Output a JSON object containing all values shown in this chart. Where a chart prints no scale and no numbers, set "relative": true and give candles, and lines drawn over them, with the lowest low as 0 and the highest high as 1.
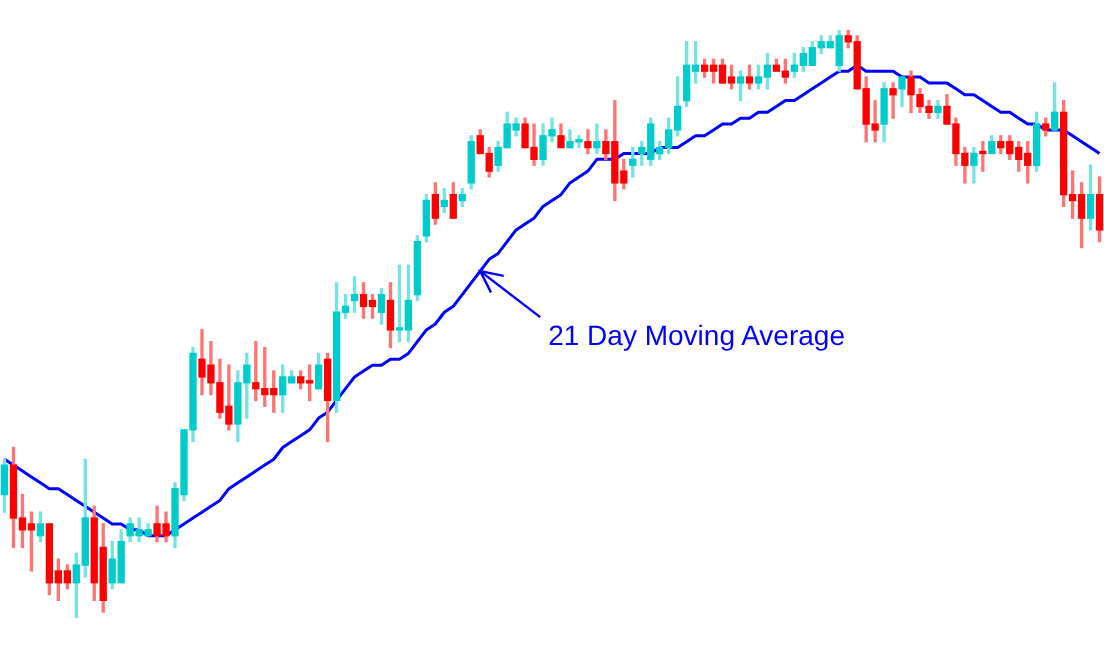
{
  "chart_data": {
    "type": "candlestick",
    "relative": true,
    "legend": false,
    "categories": [
      null,
      null,
      null,
      null,
      null,
      null,
      null,
      null,
      null,
      null,
      null,
      null,
      null,
      null,
      null,
      null,
      null,
      null,
      null,
      null,
      null,
      null,
      null,
      null,
      null,
      null,
      null,
      null,
      null,
      null,
      null,
      null,
      null,
      null,
      null,
      null,
      null,
      null,
      null,
      null,
      null,
      null,
      null,
      null,
      null,
      null,
      null,
      null,
      null,
      null,
      null,
      null,
      null,
      null,
      null,
      null,
      null,
      null,
      null,
      null,
      null,
      null,
      null,
      null,
      null,
      null,
      null,
      null,
      null,
      null,
      null,
      null,
      null,
      null,
      null,
      null,
      null,
      null,
      null,
      null,
      null,
      null,
      null,
      null,
      null,
      null,
      null,
      null,
      null,
      null,
      null,
      null,
      null,
      null,
      null,
      null,
      null,
      null,
      null,
      null,
      null,
      null,
      null,
      null,
      null,
      null,
      null,
      null,
      null,
      null,
      null,
      null,
      null,
      null,
      null,
      null,
      null,
      null,
      null,
      null,
      null,
      null,
      null
    ],
    "ohlc": [
      [
        0.21,
        0.27,
        0.18,
        0.26
      ],
      [
        0.26,
        0.29,
        0.12,
        0.17
      ],
      [
        0.17,
        0.21,
        0.12,
        0.15
      ],
      [
        0.16,
        0.18,
        0.08,
        0.15
      ],
      [
        0.14,
        0.18,
        0.13,
        0.16
      ],
      [
        0.16,
        0.16,
        0.04,
        0.06
      ],
      [
        0.08,
        0.1,
        0.03,
        0.06
      ],
      [
        0.08,
        0.09,
        0.05,
        0.06
      ],
      [
        0.06,
        0.11,
        0.0,
        0.09
      ],
      [
        0.09,
        0.27,
        0.07,
        0.17
      ],
      [
        0.17,
        0.19,
        0.03,
        0.06
      ],
      [
        0.12,
        0.16,
        0.01,
        0.03
      ],
      [
        0.06,
        0.13,
        0.05,
        0.1
      ],
      [
        0.06,
        0.15,
        0.06,
        0.13
      ],
      [
        0.14,
        0.17,
        0.13,
        0.16
      ],
      [
        0.14,
        0.17,
        0.13,
        0.15
      ],
      [
        0.14,
        0.16,
        0.14,
        0.15
      ],
      [
        0.16,
        0.19,
        0.13,
        0.14
      ],
      [
        0.16,
        0.18,
        0.13,
        0.14
      ],
      [
        0.14,
        0.23,
        0.12,
        0.22
      ],
      [
        0.21,
        0.32,
        0.2,
        0.32
      ],
      [
        0.32,
        0.46,
        0.3,
        0.45
      ],
      [
        0.44,
        0.49,
        0.38,
        0.41
      ],
      [
        0.43,
        0.47,
        0.38,
        0.4
      ],
      [
        0.4,
        0.44,
        0.34,
        0.35
      ],
      [
        0.36,
        0.43,
        0.32,
        0.33
      ],
      [
        0.33,
        0.42,
        0.3,
        0.4
      ],
      [
        0.4,
        0.45,
        0.34,
        0.43
      ],
      [
        0.4,
        0.47,
        0.37,
        0.39
      ],
      [
        0.39,
        0.46,
        0.36,
        0.38
      ],
      [
        0.39,
        0.42,
        0.35,
        0.38
      ],
      [
        0.38,
        0.43,
        0.35,
        0.41
      ],
      [
        0.4,
        0.42,
        0.4,
        0.41
      ],
      [
        0.41,
        0.42,
        0.39,
        0.4
      ],
      [
        0.4,
        0.43,
        0.37,
        0.4
      ],
      [
        0.39,
        0.45,
        0.39,
        0.43
      ],
      [
        0.44,
        0.45,
        0.3,
        0.37
      ],
      [
        0.37,
        0.57,
        0.35,
        0.52
      ],
      [
        0.52,
        0.55,
        0.51,
        0.53
      ],
      [
        0.54,
        0.58,
        0.52,
        0.55
      ],
      [
        0.55,
        0.57,
        0.51,
        0.53
      ],
      [
        0.54,
        0.55,
        0.51,
        0.53
      ],
      [
        0.52,
        0.56,
        0.5,
        0.55
      ],
      [
        0.54,
        0.57,
        0.46,
        0.49
      ],
      [
        0.49,
        0.6,
        0.47,
        0.49
      ],
      [
        0.49,
        0.6,
        0.47,
        0.54
      ],
      [
        0.55,
        0.65,
        0.54,
        0.64
      ],
      [
        0.65,
        0.72,
        0.64,
        0.71
      ],
      [
        0.72,
        0.74,
        0.67,
        0.68
      ],
      [
        0.7,
        0.73,
        0.69,
        0.71
      ],
      [
        0.72,
        0.74,
        0.68,
        0.68
      ],
      [
        0.71,
        0.73,
        0.7,
        0.72
      ],
      [
        0.74,
        0.82,
        0.73,
        0.81
      ],
      [
        0.82,
        0.83,
        0.79,
        0.79
      ],
      [
        0.79,
        0.8,
        0.75,
        0.76
      ],
      [
        0.77,
        0.81,
        0.76,
        0.8
      ],
      [
        0.8,
        0.86,
        0.8,
        0.84
      ],
      [
        0.83,
        0.85,
        0.82,
        0.84
      ],
      [
        0.84,
        0.85,
        0.8,
        0.8
      ],
      [
        0.8,
        0.84,
        0.77,
        0.78
      ],
      [
        0.78,
        0.84,
        0.77,
        0.82
      ],
      [
        0.82,
        0.85,
        0.81,
        0.83
      ],
      [
        0.82,
        0.84,
        0.8,
        0.8
      ],
      [
        0.8,
        0.83,
        0.8,
        0.81
      ],
      [
        0.81,
        0.82,
        0.8,
        0.81
      ],
      [
        0.81,
        0.83,
        0.79,
        0.8
      ],
      [
        0.8,
        0.84,
        0.79,
        0.81
      ],
      [
        0.81,
        0.83,
        0.78,
        0.79
      ],
      [
        0.81,
        0.88,
        0.71,
        0.74
      ],
      [
        0.76,
        0.78,
        0.73,
        0.74
      ],
      [
        0.77,
        0.8,
        0.75,
        0.78
      ],
      [
        0.79,
        0.81,
        0.77,
        0.8
      ],
      [
        0.78,
        0.85,
        0.77,
        0.84
      ],
      [
        0.79,
        0.81,
        0.78,
        0.8
      ],
      [
        0.8,
        0.85,
        0.79,
        0.83
      ],
      [
        0.83,
        0.92,
        0.82,
        0.87
      ],
      [
        0.88,
        0.98,
        0.87,
        0.94
      ],
      [
        0.93,
        0.98,
        0.91,
        0.94
      ],
      [
        0.94,
        0.95,
        0.92,
        0.93
      ],
      [
        0.94,
        0.95,
        0.91,
        0.93
      ],
      [
        0.94,
        0.95,
        0.91,
        0.91
      ],
      [
        0.92,
        0.94,
        0.9,
        0.91
      ],
      [
        0.91,
        0.93,
        0.88,
        0.92
      ],
      [
        0.92,
        0.94,
        0.9,
        0.91
      ],
      [
        0.91,
        0.94,
        0.9,
        0.92
      ],
      [
        0.92,
        0.96,
        0.9,
        0.94
      ],
      [
        0.94,
        0.95,
        0.93,
        0.93
      ],
      [
        0.93,
        0.95,
        0.91,
        0.92
      ],
      [
        0.93,
        0.96,
        0.92,
        0.94
      ],
      [
        0.94,
        0.97,
        0.93,
        0.96
      ],
      [
        0.94,
        0.98,
        0.94,
        0.97
      ],
      [
        0.97,
        0.99,
        0.96,
        0.98
      ],
      [
        0.97,
        0.99,
        0.97,
        0.98
      ],
      [
        0.94,
        1.0,
        0.93,
        0.99
      ],
      [
        0.99,
        1.0,
        0.97,
        0.98
      ],
      [
        0.98,
        0.99,
        0.9,
        0.9
      ],
      [
        0.9,
        0.92,
        0.81,
        0.84
      ],
      [
        0.84,
        0.88,
        0.81,
        0.83
      ],
      [
        0.84,
        0.91,
        0.81,
        0.9
      ],
      [
        0.9,
        0.91,
        0.85,
        0.89
      ],
      [
        0.9,
        0.92,
        0.87,
        0.92
      ],
      [
        0.92,
        0.93,
        0.86,
        0.89
      ],
      [
        0.89,
        0.9,
        0.86,
        0.87
      ],
      [
        0.87,
        0.88,
        0.85,
        0.86
      ],
      [
        0.86,
        0.88,
        0.85,
        0.87
      ],
      [
        0.87,
        0.89,
        0.84,
        0.84
      ],
      [
        0.84,
        0.85,
        0.77,
        0.79
      ],
      [
        0.79,
        0.8,
        0.74,
        0.77
      ],
      [
        0.77,
        0.8,
        0.74,
        0.79
      ],
      [
        0.79,
        0.81,
        0.76,
        0.79
      ],
      [
        0.79,
        0.82,
        0.79,
        0.81
      ],
      [
        0.81,
        0.82,
        0.79,
        0.8
      ],
      [
        0.81,
        0.82,
        0.78,
        0.79
      ],
      [
        0.8,
        0.81,
        0.76,
        0.78
      ],
      [
        0.79,
        0.81,
        0.74,
        0.77
      ],
      [
        0.77,
        0.86,
        0.76,
        0.84
      ],
      [
        0.84,
        0.85,
        0.82,
        0.83
      ],
      [
        0.83,
        0.91,
        0.83,
        0.86
      ],
      [
        0.86,
        0.88,
        0.7,
        0.72
      ],
      [
        0.72,
        0.76,
        0.68,
        0.71
      ],
      [
        0.72,
        0.74,
        0.63,
        0.68
      ],
      [
        0.68,
        0.77,
        0.66,
        0.72
      ],
      [
        0.72,
        0.75,
        0.64,
        0.66
      ]
    ],
    "colors": [
      "#00cccc",
      "#ff0000",
      "#ff0000",
      "#ff0000",
      "#00cccc",
      "#ff0000",
      "#ff0000",
      "#ff0000",
      "#00cccc",
      "#00cccc",
      "#ff0000",
      "#ff0000",
      "#00cccc",
      "#00cccc",
      "#00cccc",
      "#00cccc",
      "#00cccc",
      "#ff0000",
      "#ff0000",
      "#00cccc",
      "#00cccc",
      "#00cccc",
      "#ff0000",
      "#ff0000",
      "#ff0000",
      "#ff0000",
      "#00cccc",
      "#00cccc",
      "#ff0000",
      "#ff0000",
      "#ff0000",
      "#00cccc",
      "#00cccc",
      "#ff0000",
      "#ff0000",
      "#00cccc",
      "#ff0000",
      "#00cccc",
      "#00cccc",
      "#00cccc",
      "#ff0000",
      "#ff0000",
      "#00cccc",
      "#ff0000",
      "#00cccc",
      "#00cccc",
      "#00cccc",
      "#00cccc",
      "#ff0000",
      "#00cccc",
      "#ff0000",
      "#00cccc",
      "#00cccc",
      "#ff0000",
      "#ff0000",
      "#00cccc",
      "#00cccc",
      "#00cccc",
      "#ff0000",
      "#ff0000",
      "#00cccc",
      "#00cccc",
      "#ff0000",
      "#00cccc",
      "#00cccc",
      "#ff0000",
      "#00cccc",
      "#ff0000",
      "#ff0000",
      "#ff0000",
      "#00cccc",
      "#00cccc",
      "#00cccc",
      "#00cccc",
      "#00cccc",
      "#00cccc",
      "#00cccc",
      "#00cccc",
      "#ff0000",
      "#ff0000",
      "#ff0000",
      "#ff0000",
      "#00cccc",
      "#ff0000",
      "#00cccc",
      "#00cccc",
      "#ff0000",
      "#ff0000",
      "#00cccc",
      "#00cccc",
      "#00cccc",
      "#00cccc",
      "#00cccc",
      "#00cccc",
      "#ff0000",
      "#ff0000",
      "#ff0000",
      "#ff0000",
      "#00cccc",
      "#ff0000",
      "#00cccc",
      "#ff0000",
      "#ff0000",
      "#ff0000",
      "#00cccc",
      "#ff0000",
      "#ff0000",
      "#ff0000",
      "#00cccc",
      "#ff0000",
      "#00cccc",
      "#ff0000",
      "#ff0000",
      "#ff0000",
      "#ff0000",
      "#00cccc",
      "#ff0000",
      "#00cccc",
      "#ff0000",
      "#ff0000",
      "#ff0000",
      "#00cccc",
      "#ff0000"
    ],
    "series": [
      {
        "type": "line",
        "color": "#0000ff",
        "values": [
          0.27,
          0.26,
          0.25,
          0.24,
          0.23,
          0.22,
          0.22,
          0.21,
          0.2,
          0.19,
          0.18,
          0.17,
          0.16,
          0.16,
          0.15,
          0.15,
          0.14,
          0.14,
          0.14,
          0.15,
          0.16,
          0.17,
          0.18,
          0.19,
          0.2,
          0.22,
          0.23,
          0.24,
          0.25,
          0.26,
          0.27,
          0.29,
          0.3,
          0.31,
          0.32,
          0.34,
          0.35,
          0.37,
          0.39,
          0.41,
          0.42,
          0.43,
          0.43,
          0.44,
          0.44,
          0.45,
          0.47,
          0.49,
          0.5,
          0.52,
          0.53,
          0.55,
          0.57,
          0.59,
          0.61,
          0.62,
          0.64,
          0.66,
          0.67,
          0.68,
          0.7,
          0.71,
          0.72,
          0.74,
          0.75,
          0.76,
          0.78,
          0.78,
          0.78,
          0.79,
          0.79,
          0.79,
          0.79,
          0.8,
          0.8,
          0.8,
          0.81,
          0.82,
          0.82,
          0.83,
          0.84,
          0.84,
          0.85,
          0.85,
          0.86,
          0.86,
          0.87,
          0.88,
          0.88,
          0.89,
          0.9,
          0.91,
          0.92,
          0.93,
          0.93,
          0.94,
          0.93,
          0.93,
          0.93,
          0.93,
          0.92,
          0.92,
          0.92,
          0.91,
          0.91,
          0.91,
          0.9,
          0.89,
          0.89,
          0.88,
          0.87,
          0.86,
          0.86,
          0.85,
          0.84,
          0.84,
          0.83,
          0.83,
          0.83,
          0.82,
          0.81,
          0.8,
          0.79
        ]
      }
    ],
    "annotations": [
      "21 Day Moving Average"
    ]
  }
}
